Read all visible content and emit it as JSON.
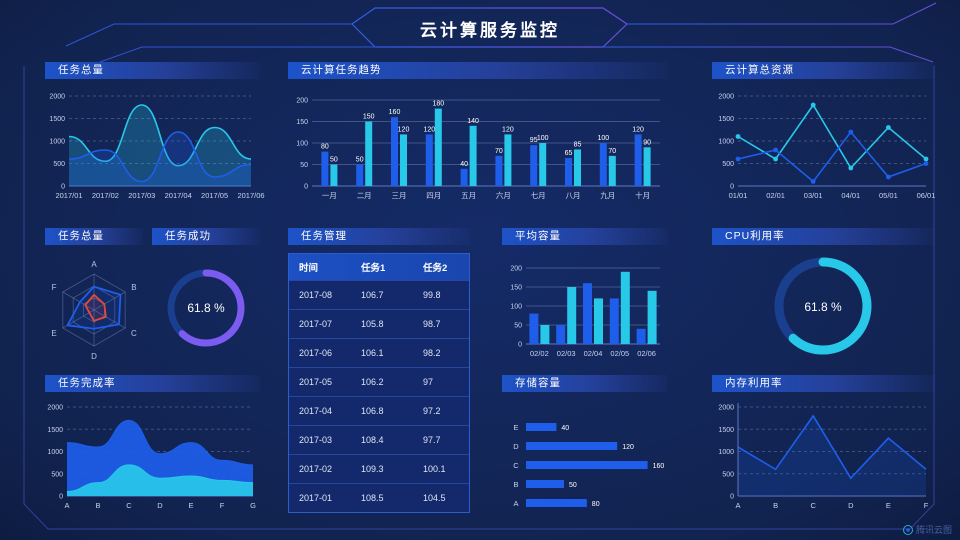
{
  "header": {
    "title": "云计算服务监控"
  },
  "watermark": {
    "label": "腾讯云图"
  },
  "colors": {
    "blue": "#1E5EEB",
    "cyan": "#28C8E9",
    "purple": "#7B5BF0",
    "red": "#E5483C",
    "gauge_track": "#1B3F8F",
    "grid": "rgba(170,190,230,0.30)",
    "tick": "#C8D3F0",
    "axis": "#5A78C2"
  },
  "panels": {
    "task_total_line": {
      "title": "任务总量"
    },
    "task_trend": {
      "title": "云计算任务趋势"
    },
    "total_resources": {
      "title": "云计算总资源"
    },
    "task_total_radar": {
      "title": "任务总量"
    },
    "task_success": {
      "title": "任务成功",
      "value": "61.8 %"
    },
    "task_management": {
      "title": "任务管理",
      "columns": [
        "时间",
        "任务1",
        "任务2"
      ],
      "rows": [
        [
          "2017-08",
          "106.7",
          "99.8"
        ],
        [
          "2017-07",
          "105.8",
          "98.7"
        ],
        [
          "2017-06",
          "106.1",
          "98.2"
        ],
        [
          "2017-05",
          "106.2",
          "97"
        ],
        [
          "2017-04",
          "106.8",
          "97.2"
        ],
        [
          "2017-03",
          "108.4",
          "97.7"
        ],
        [
          "2017-02",
          "109.3",
          "100.1"
        ],
        [
          "2017-01",
          "108.5",
          "104.5"
        ]
      ]
    },
    "avg_capacity": {
      "title": "平均容量"
    },
    "cpu_usage": {
      "title": "CPU利用率",
      "value": "61.8 %"
    },
    "completion_rate": {
      "title": "任务完成率"
    },
    "storage": {
      "title": "存储容量"
    },
    "memory": {
      "title": "内存利用率"
    }
  },
  "chart_data": [
    {
      "id": "task_total_line",
      "type": "area",
      "smooth": true,
      "x": [
        "2017/01",
        "2017/02",
        "2017/03",
        "2017/04",
        "2017/05",
        "2017/06"
      ],
      "series": [
        {
          "name": "series-cyan",
          "color": "cyan",
          "values": [
            1100,
            550,
            1800,
            450,
            1300,
            600
          ]
        },
        {
          "name": "series-blue",
          "color": "blue",
          "values": [
            600,
            800,
            100,
            1200,
            200,
            480
          ]
        }
      ],
      "ylim": [
        0,
        2000
      ],
      "yticks": [
        0,
        500,
        1000,
        1500,
        2000
      ],
      "grid": "dashed"
    },
    {
      "id": "task_trend",
      "type": "bar",
      "bar_labels": true,
      "categories": [
        "一月",
        "二月",
        "三月",
        "四月",
        "五月",
        "六月",
        "七月",
        "八月",
        "九月",
        "十月"
      ],
      "series": [
        {
          "name": "series-blue",
          "color": "blue",
          "values": [
            80,
            50,
            160,
            120,
            40,
            70,
            95,
            65,
            100,
            120
          ]
        },
        {
          "name": "series-cyan",
          "color": "cyan",
          "values": [
            50,
            150,
            120,
            180,
            140,
            120,
            100,
            85,
            70,
            90
          ]
        }
      ],
      "ylim": [
        0,
        200
      ],
      "yticks": [
        0,
        50,
        100,
        150,
        200
      ],
      "grid": "solid"
    },
    {
      "id": "total_resources",
      "type": "line",
      "markers": true,
      "x": [
        "01/01",
        "02/01",
        "03/01",
        "04/01",
        "05/01",
        "06/01"
      ],
      "series": [
        {
          "name": "series-cyan",
          "color": "cyan",
          "values": [
            1100,
            600,
            1800,
            400,
            1300,
            600
          ]
        },
        {
          "name": "series-blue",
          "color": "blue",
          "values": [
            600,
            800,
            100,
            1200,
            200,
            500
          ]
        }
      ],
      "ylim": [
        0,
        2000
      ],
      "yticks": [
        0,
        500,
        1000,
        1500,
        2000
      ],
      "grid": "dashed"
    },
    {
      "id": "task_total_radar",
      "type": "radar",
      "axes": [
        "A",
        "B",
        "C",
        "D",
        "E",
        "F"
      ],
      "max": 1,
      "series": [
        {
          "name": "series-blue",
          "color": "blue",
          "values": [
            0.65,
            0.85,
            0.8,
            0.52,
            0.85,
            0.45
          ]
        },
        {
          "name": "series-red",
          "color": "red",
          "values": [
            0.42,
            0.33,
            0.38,
            0.3,
            0.15,
            0.28
          ]
        }
      ]
    },
    {
      "id": "task_success",
      "type": "gauge",
      "percent": 61.8,
      "label": "61.8 %",
      "color": "purple"
    },
    {
      "id": "avg_capacity",
      "type": "bar",
      "bar_labels": false,
      "categories": [
        "02/02",
        "02/03",
        "02/04",
        "02/05",
        "02/06"
      ],
      "series": [
        {
          "name": "series-blue",
          "color": "blue",
          "values": [
            80,
            50,
            160,
            120,
            40
          ]
        },
        {
          "name": "series-cyan",
          "color": "cyan",
          "values": [
            50,
            150,
            120,
            190,
            140
          ]
        }
      ],
      "ylim": [
        0,
        200
      ],
      "yticks": [
        0,
        50,
        100,
        150,
        200
      ],
      "grid": "solid"
    },
    {
      "id": "cpu_usage",
      "type": "gauge",
      "percent": 61.8,
      "label": "61.8 %",
      "color": "cyan"
    },
    {
      "id": "completion_rate",
      "type": "area",
      "smooth": true,
      "solid": true,
      "x": [
        "A",
        "B",
        "C",
        "D",
        "E",
        "F",
        "G"
      ],
      "series": [
        {
          "name": "series-blue",
          "color": "blue",
          "values": [
            1200,
            1100,
            1700,
            950,
            1200,
            800,
            700
          ]
        },
        {
          "name": "series-cyan",
          "color": "cyan",
          "values": [
            100,
            300,
            700,
            400,
            450,
            350,
            300
          ]
        }
      ],
      "ylim": [
        0,
        2000
      ],
      "yticks": [
        0,
        500,
        1000,
        1500,
        2000
      ],
      "grid": "dashed"
    },
    {
      "id": "storage",
      "type": "hbar",
      "categories": [
        "E",
        "D",
        "C",
        "B",
        "A"
      ],
      "values": [
        40,
        120,
        160,
        50,
        80
      ],
      "max": 180
    },
    {
      "id": "memory",
      "type": "line",
      "axis_lines": true,
      "x": [
        "A",
        "B",
        "C",
        "D",
        "E",
        "F"
      ],
      "series": [
        {
          "name": "series-blue",
          "color": "blue",
          "values": [
            1100,
            600,
            1800,
            400,
            1300,
            600
          ],
          "fill": true
        }
      ],
      "ylim": [
        0,
        2000
      ],
      "yticks": [
        0,
        500,
        1000,
        1500,
        2000
      ],
      "grid": "dashed"
    }
  ]
}
